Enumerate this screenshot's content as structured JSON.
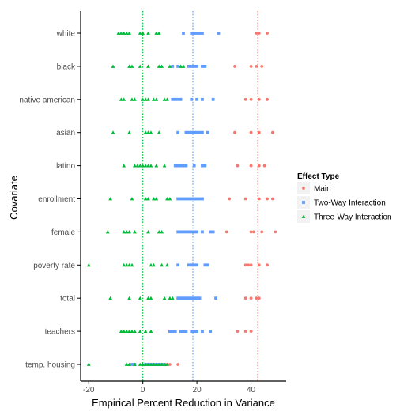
{
  "chart_data": {
    "type": "scatter",
    "title": "",
    "xlabel": "Empirical Percent Reduction in Variance",
    "ylabel": "Covariate",
    "xlim": [
      -23,
      53
    ],
    "x_ticks": [
      -20,
      0,
      20,
      40
    ],
    "x_tick_labels": [
      "-20",
      "0",
      "20",
      "40"
    ],
    "categories": [
      "white",
      "black",
      "native american",
      "asian",
      "latino",
      "enrollment",
      "female",
      "poverty rate",
      "total",
      "teachers",
      "temp. housing"
    ],
    "grid": false,
    "legend": {
      "title": "Effect Type",
      "placement": "right",
      "entries": [
        "Main",
        "Two-Way Interaction",
        "Three-Way Interaction"
      ]
    },
    "colors": {
      "Main": "#F8766D",
      "Two-Way Interaction": "#619CFF",
      "Three-Way Interaction": "#00BA38"
    },
    "shapes": {
      "Main": "circle",
      "Two-Way Interaction": "square",
      "Three-Way Interaction": "triangle"
    },
    "reference_lines": [
      {
        "series": "Three-Way Interaction",
        "x": 0,
        "style": "dotted"
      },
      {
        "series": "Two-Way Interaction",
        "x": 18.5,
        "style": "dotted"
      },
      {
        "series": "Main",
        "x": 42.5,
        "style": "dotted"
      }
    ],
    "series": [
      {
        "name": "Main",
        "points": [
          {
            "category": "white",
            "x": [
              42,
              43,
              46
            ]
          },
          {
            "category": "black",
            "x": [
              34,
              40,
              42,
              44
            ]
          },
          {
            "category": "native american",
            "x": [
              38,
              40,
              43,
              46
            ]
          },
          {
            "category": "asian",
            "x": [
              34,
              40,
              43,
              48
            ]
          },
          {
            "category": "latino",
            "x": [
              35,
              40,
              43,
              45
            ]
          },
          {
            "category": "enrollment",
            "x": [
              32,
              38,
              43,
              46,
              48
            ]
          },
          {
            "category": "female",
            "x": [
              31,
              40,
              41,
              44,
              49
            ]
          },
          {
            "category": "poverty rate",
            "x": [
              38,
              39,
              40,
              43,
              46
            ]
          },
          {
            "category": "total",
            "x": [
              38,
              40,
              42,
              43
            ]
          },
          {
            "category": "teachers",
            "x": [
              35,
              38,
              40
            ]
          },
          {
            "category": "temp. housing",
            "x": [
              9,
              10,
              13
            ]
          }
        ]
      },
      {
        "name": "Two-Way Interaction",
        "points": [
          {
            "category": "white",
            "x": [
              15,
              18,
              19,
              20,
              21,
              22,
              28
            ]
          },
          {
            "category": "black",
            "x": [
              11,
              13,
              17,
              18,
              19,
              20,
              22,
              23
            ]
          },
          {
            "category": "native american",
            "x": [
              11,
              12,
              13,
              14,
              18,
              20,
              22,
              26
            ]
          },
          {
            "category": "asian",
            "x": [
              13,
              16,
              17,
              18,
              19,
              20,
              21,
              22,
              24
            ]
          },
          {
            "category": "latino",
            "x": [
              12,
              13,
              14,
              15,
              16,
              19,
              22,
              23
            ]
          },
          {
            "category": "enrollment",
            "x": [
              13,
              14,
              15,
              16,
              17,
              18,
              19,
              20,
              21,
              22
            ]
          },
          {
            "category": "female",
            "x": [
              13,
              14,
              15,
              16,
              17,
              18,
              19,
              20,
              22,
              25,
              26
            ]
          },
          {
            "category": "poverty rate",
            "x": [
              13,
              17,
              18,
              19,
              20,
              23,
              24
            ]
          },
          {
            "category": "total",
            "x": [
              13,
              14,
              15,
              16,
              17,
              18,
              19,
              20,
              21,
              27
            ]
          },
          {
            "category": "teachers",
            "x": [
              10,
              11,
              12,
              14,
              15,
              16,
              18,
              19,
              20,
              22,
              25
            ]
          },
          {
            "category": "temp. housing",
            "x": [
              -4,
              -3,
              1,
              2,
              3,
              4,
              5,
              6,
              7,
              8
            ]
          }
        ]
      },
      {
        "name": "Three-Way Interaction",
        "points": [
          {
            "category": "white",
            "x": [
              -9,
              -8,
              -7,
              -6,
              -5,
              -1,
              0,
              2,
              5,
              6
            ]
          },
          {
            "category": "black",
            "x": [
              -11,
              -5,
              -4,
              -1,
              2,
              6,
              7,
              10,
              14,
              15
            ]
          },
          {
            "category": "native american",
            "x": [
              -8,
              -7,
              -4,
              -3,
              0,
              1,
              2,
              4,
              5,
              8,
              9
            ]
          },
          {
            "category": "asian",
            "x": [
              -11,
              -5,
              1,
              2,
              3,
              6
            ]
          },
          {
            "category": "latino",
            "x": [
              -7,
              -3,
              -2,
              -1,
              0,
              1,
              2,
              3,
              5,
              8
            ]
          },
          {
            "category": "enrollment",
            "x": [
              -12,
              -4,
              1,
              2,
              4,
              5,
              9,
              10
            ]
          },
          {
            "category": "female",
            "x": [
              -13,
              -7,
              -6,
              -5,
              -3,
              2,
              6,
              7
            ]
          },
          {
            "category": "poverty rate",
            "x": [
              -20,
              -7,
              -6,
              -5,
              -4,
              3,
              4,
              7,
              9
            ]
          },
          {
            "category": "total",
            "x": [
              -12,
              -5,
              -1,
              2,
              3,
              8,
              10,
              11
            ]
          },
          {
            "category": "teachers",
            "x": [
              -8,
              -7,
              -6,
              -5,
              -4,
              -3,
              -1,
              1,
              3
            ]
          },
          {
            "category": "temp. housing",
            "x": [
              -20,
              -6,
              -5,
              -3,
              -1,
              0,
              1,
              2,
              3,
              4,
              5,
              6,
              7,
              8,
              9
            ]
          }
        ]
      }
    ]
  }
}
